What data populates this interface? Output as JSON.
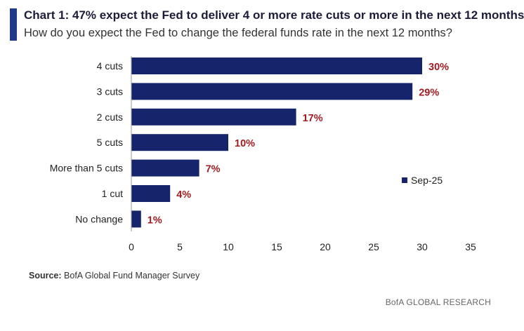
{
  "header": {
    "title": "Chart 1: 47% expect the Fed to deliver 4 or more rate cuts or more in the next 12 months",
    "subtitle": "How do you expect the Fed to change the federal funds rate in the next 12 months?"
  },
  "footer": {
    "source_label": "Source:",
    "source_text": "BofA Global Fund Manager Survey",
    "brand": "BofA GLOBAL RESEARCH"
  },
  "colors": {
    "bar": "#15246b",
    "label": "#a11d21",
    "accent": "#1f3a8a"
  },
  "chart_data": {
    "type": "bar",
    "orientation": "horizontal",
    "categories": [
      "4 cuts",
      "3 cuts",
      "2 cuts",
      "5 cuts",
      "More than 5 cuts",
      "1 cut",
      "No change"
    ],
    "series": [
      {
        "name": "Sep-25",
        "values": [
          30,
          29,
          17,
          10,
          7,
          4,
          1
        ],
        "data_labels": [
          "30%",
          "29%",
          "17%",
          "10%",
          "7%",
          "4%",
          "1%"
        ]
      }
    ],
    "xlim": [
      0,
      35
    ],
    "xticks": [
      0,
      5,
      10,
      15,
      20,
      25,
      30,
      35
    ],
    "grid": false,
    "legend": "right"
  }
}
